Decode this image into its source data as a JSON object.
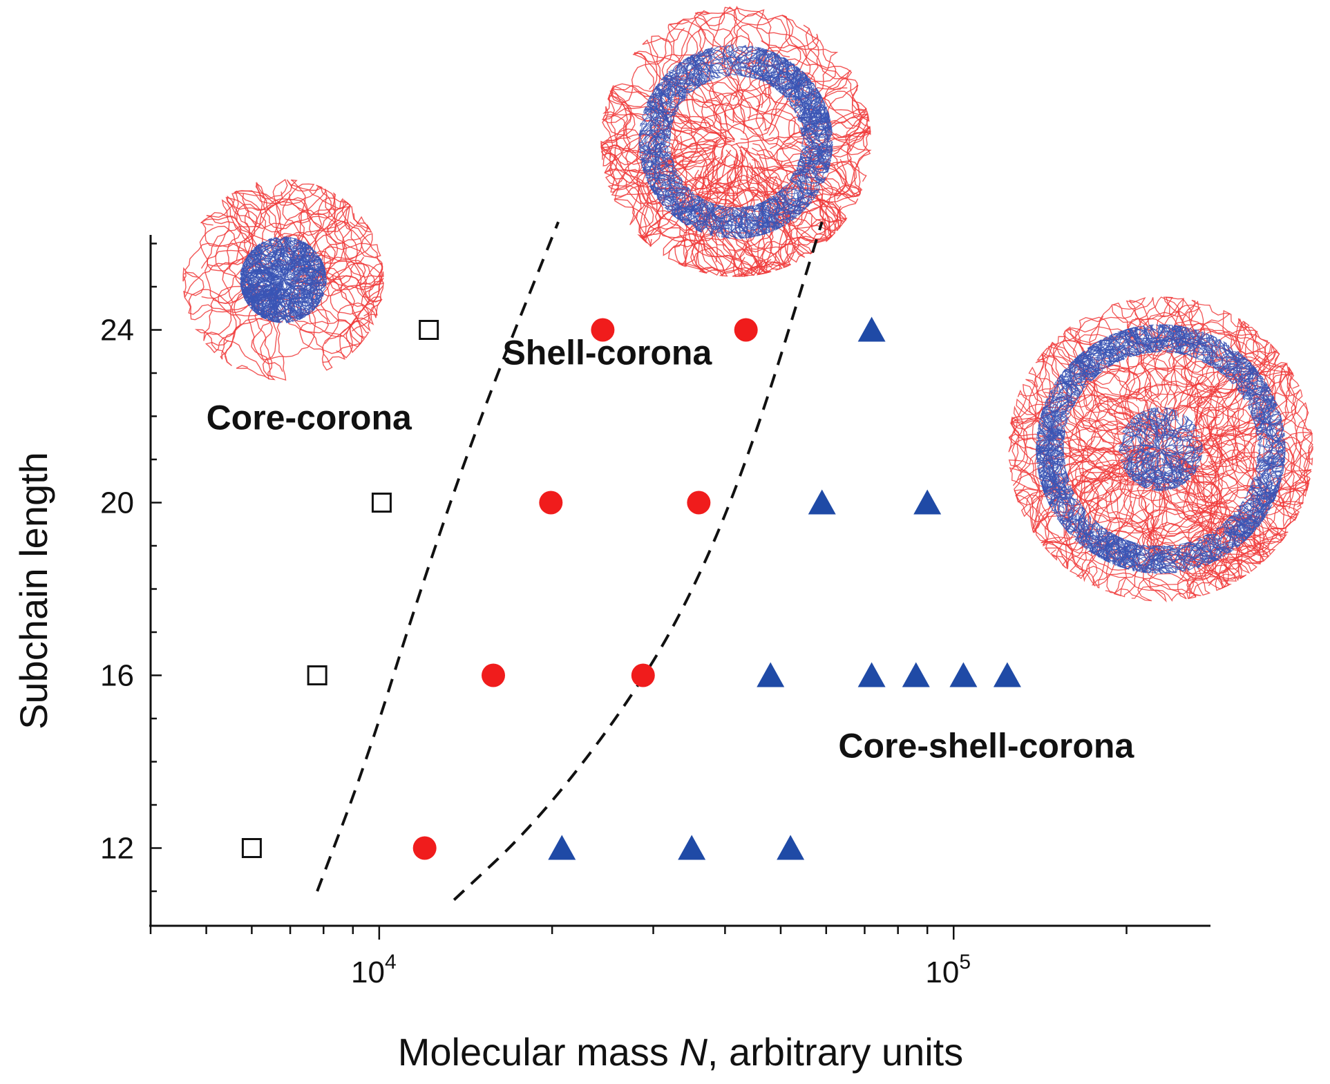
{
  "chart_data": {
    "type": "scatter",
    "title": "",
    "xlabel_parts": [
      "Molecular mass ",
      "N",
      ", arbitrary units"
    ],
    "ylabel": "Subchain length",
    "xscale": "log",
    "xlim": [
      4000,
      280000
    ],
    "ylim": [
      10.2,
      26.2
    ],
    "x_ticks": [
      {
        "base": "10",
        "exp": "4",
        "value": 10000
      },
      {
        "base": "10",
        "exp": "5",
        "value": 100000
      }
    ],
    "y_ticks": [
      "12",
      "16",
      "20",
      "24"
    ],
    "series": [
      {
        "name": "Core-corona",
        "marker": "open-square",
        "color": "#111111",
        "points": [
          [
            6000,
            12
          ],
          [
            7800,
            16
          ],
          [
            10100,
            20
          ],
          [
            12200,
            24
          ]
        ]
      },
      {
        "name": "Shell-corona",
        "marker": "filled-circle",
        "color": "#f01c1c",
        "points": [
          [
            12000,
            12
          ],
          [
            15800,
            16
          ],
          [
            28800,
            16
          ],
          [
            19900,
            20
          ],
          [
            36000,
            20
          ],
          [
            24500,
            24
          ],
          [
            43500,
            24
          ]
        ]
      },
      {
        "name": "Core-shell-corona",
        "marker": "filled-triangle",
        "color": "#1f4aa6",
        "points": [
          [
            20800,
            12
          ],
          [
            35000,
            12
          ],
          [
            52000,
            12
          ],
          [
            48000,
            16
          ],
          [
            72000,
            16
          ],
          [
            86000,
            16
          ],
          [
            104000,
            16
          ],
          [
            124000,
            16
          ],
          [
            59000,
            20
          ],
          [
            90000,
            20
          ],
          [
            72000,
            24
          ]
        ]
      }
    ],
    "boundaries": [
      {
        "name": "core-corona/shell-corona",
        "points": [
          [
            7800,
            11
          ],
          [
            9500,
            14
          ],
          [
            11800,
            18
          ],
          [
            15000,
            22
          ],
          [
            20500,
            26.5
          ]
        ]
      },
      {
        "name": "shell-corona/core-shell-corona",
        "points": [
          [
            13500,
            10.8
          ],
          [
            18500,
            12.5
          ],
          [
            26000,
            15
          ],
          [
            34000,
            17.5
          ],
          [
            44000,
            21
          ],
          [
            59000,
            26.5
          ]
        ]
      }
    ],
    "annotations": [
      {
        "text": "Core-corona",
        "x": 5000,
        "y": 21.7
      },
      {
        "text": "Shell-corona",
        "x": 16400,
        "y": 23.2
      },
      {
        "text": "Core-shell-corona",
        "x": 63000,
        "y": 14.1
      }
    ]
  },
  "colors": {
    "corona_red": "#f03a3a",
    "core_blue": "#3a55b5",
    "axis": "#111111"
  }
}
